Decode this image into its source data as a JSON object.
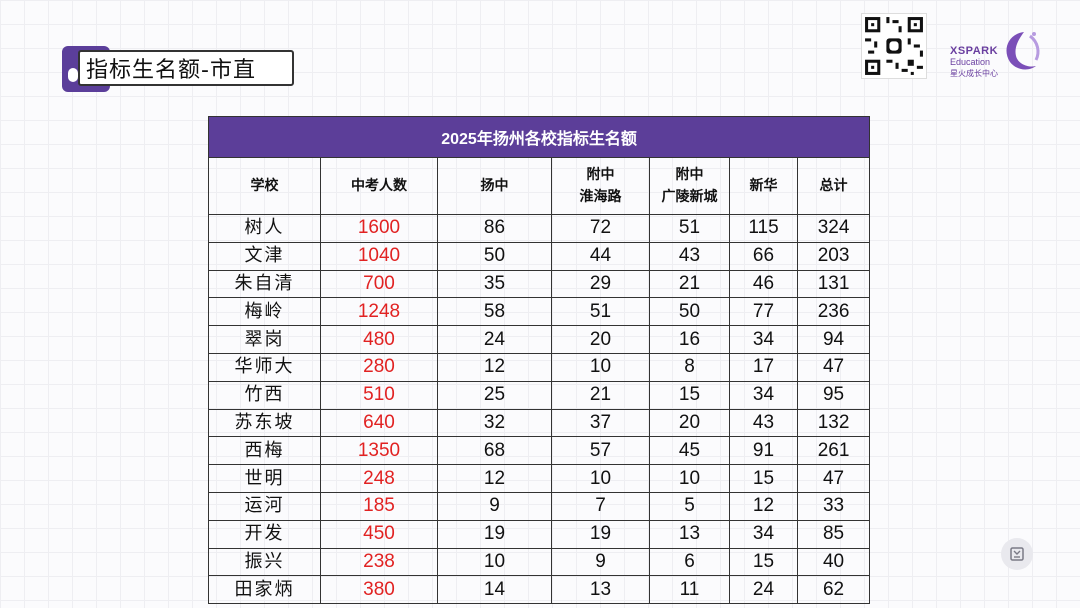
{
  "slide_title": "指标生名额-市直",
  "brand": {
    "name": "XSPARK",
    "sub": "Education",
    "cn": "星火成长中心"
  },
  "table": {
    "caption": "2025年扬州各校指标生名额",
    "headers": [
      [
        "学校"
      ],
      [
        "中考人数"
      ],
      [
        "扬中"
      ],
      [
        "附中",
        "淮海路"
      ],
      [
        "附中",
        "广陵新城"
      ],
      [
        "新华"
      ],
      [
        "总计"
      ]
    ],
    "rows": [
      {
        "school": "树人",
        "exam": "1600",
        "yz": "86",
        "fz_hhl": "72",
        "fz_glxc": "51",
        "xh": "115",
        "total": "324"
      },
      {
        "school": "文津",
        "exam": "1040",
        "yz": "50",
        "fz_hhl": "44",
        "fz_glxc": "43",
        "xh": "66",
        "total": "203"
      },
      {
        "school": "朱自清",
        "exam": "700",
        "yz": "35",
        "fz_hhl": "29",
        "fz_glxc": "21",
        "xh": "46",
        "total": "131"
      },
      {
        "school": "梅岭",
        "exam": "1248",
        "yz": "58",
        "fz_hhl": "51",
        "fz_glxc": "50",
        "xh": "77",
        "total": "236"
      },
      {
        "school": "翠岗",
        "exam": "480",
        "yz": "24",
        "fz_hhl": "20",
        "fz_glxc": "16",
        "xh": "34",
        "total": "94"
      },
      {
        "school": "华师大",
        "exam": "280",
        "yz": "12",
        "fz_hhl": "10",
        "fz_glxc": "8",
        "xh": "17",
        "total": "47"
      },
      {
        "school": "竹西",
        "exam": "510",
        "yz": "25",
        "fz_hhl": "21",
        "fz_glxc": "15",
        "xh": "34",
        "total": "95"
      },
      {
        "school": "苏东坡",
        "exam": "640",
        "yz": "32",
        "fz_hhl": "37",
        "fz_glxc": "20",
        "xh": "43",
        "total": "132"
      },
      {
        "school": "西梅",
        "exam": "1350",
        "yz": "68",
        "fz_hhl": "57",
        "fz_glxc": "45",
        "xh": "91",
        "total": "261"
      },
      {
        "school": "世明",
        "exam": "248",
        "yz": "12",
        "fz_hhl": "10",
        "fz_glxc": "10",
        "xh": "15",
        "total": "47"
      },
      {
        "school": "运河",
        "exam": "185",
        "yz": "9",
        "fz_hhl": "7",
        "fz_glxc": "5",
        "xh": "12",
        "total": "33"
      },
      {
        "school": "开发",
        "exam": "450",
        "yz": "19",
        "fz_hhl": "19",
        "fz_glxc": "13",
        "xh": "34",
        "total": "85"
      },
      {
        "school": "振兴",
        "exam": "238",
        "yz": "10",
        "fz_hhl": "9",
        "fz_glxc": "6",
        "xh": "15",
        "total": "40"
      },
      {
        "school": "田家炳",
        "exam": "380",
        "yz": "14",
        "fz_hhl": "13",
        "fz_glxc": "11",
        "xh": "24",
        "total": "62"
      }
    ]
  },
  "colors": {
    "accent": "#5c3e99",
    "exam_count": "#e12222"
  },
  "icons": {
    "qr": "qr-code-icon",
    "logo": "xspark-logo-icon",
    "corner": "notebook-icon"
  }
}
